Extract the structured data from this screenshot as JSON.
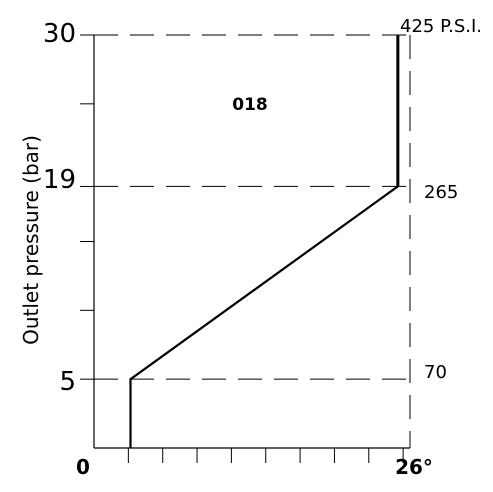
{
  "chart_data": {
    "type": "line",
    "title": "018",
    "xlabel": "",
    "ylabel": "Outlet pressure (bar)",
    "xlim": [
      0,
      26
    ],
    "ylim": [
      0,
      30
    ],
    "x_tick_labels": [
      {
        "value": 0,
        "label": "0"
      },
      {
        "value": 26,
        "label": "26°"
      }
    ],
    "x_minor_ticks": 10,
    "y_tick_labels": [
      {
        "value": 5,
        "label": "5"
      },
      {
        "value": 19,
        "label": "19"
      },
      {
        "value": 30,
        "label": "30"
      }
    ],
    "y_minor_ticks": [
      10,
      15,
      25
    ],
    "psi_labels": [
      {
        "value": 30,
        "label": "425  P.S.I."
      },
      {
        "value": 19,
        "label": "265"
      },
      {
        "value": 5,
        "label": "70"
      }
    ],
    "dashed_reference_lines_y": [
      5,
      19,
      30
    ],
    "series": [
      {
        "x": [
          3,
          3,
          25,
          25
        ],
        "y": [
          0,
          5,
          19,
          30
        ]
      }
    ],
    "grid": false
  }
}
